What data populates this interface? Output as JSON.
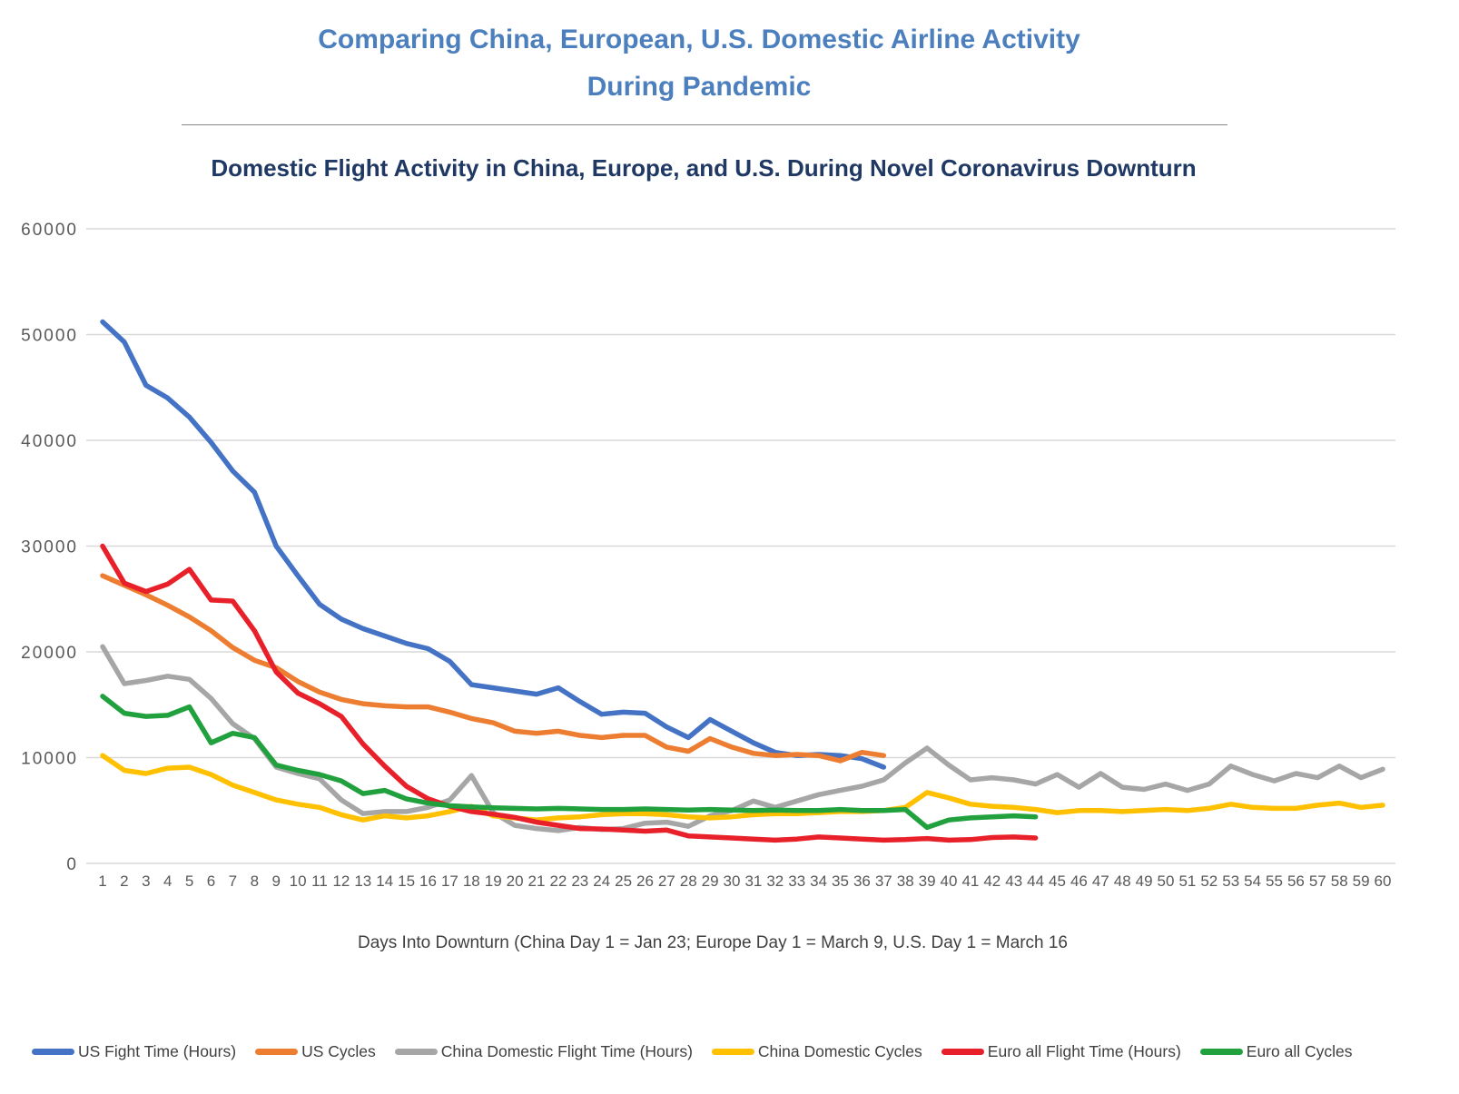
{
  "title": {
    "line1": "Comparing China, European, U.S. Domestic Airline Activity",
    "line2": "During Pandemic"
  },
  "subtitle": "Domestic Flight Activity in China, Europe, and U.S. During Novel Coronavirus Downturn",
  "x_axis_title": "Days Into Downturn (China Day 1 = Jan 23; Europe Day 1 = March 9, U.S. Day 1 = March 16",
  "colors": {
    "title_blue": "#4C7FBE",
    "subtitle_navy": "#1F3864",
    "gridline": "#D9D9D9",
    "tick_text": "#595959"
  },
  "chart_data": {
    "type": "line",
    "title": "Domestic Flight Activity in China, Europe, and U.S. During Novel Coronavirus Downturn",
    "xlabel": "Days Into Downturn (China Day 1 = Jan 23; Europe Day 1 = March 9, U.S. Day 1 = March 16",
    "ylabel": "",
    "ylim": [
      0,
      60000
    ],
    "grid": true,
    "legend_position": "bottom",
    "y_ticks": [
      0,
      10000,
      20000,
      30000,
      40000,
      50000,
      60000
    ],
    "x": [
      1,
      2,
      3,
      4,
      5,
      6,
      7,
      8,
      9,
      10,
      11,
      12,
      13,
      14,
      15,
      16,
      17,
      18,
      19,
      20,
      21,
      22,
      23,
      24,
      25,
      26,
      27,
      28,
      29,
      30,
      31,
      32,
      33,
      34,
      35,
      36,
      37,
      38,
      39,
      40,
      41,
      42,
      43,
      44,
      45,
      46,
      47,
      48,
      49,
      50,
      51,
      52,
      53,
      54,
      55,
      56,
      57,
      58,
      59,
      60
    ],
    "series": [
      {
        "name": "US Fight Time (Hours)",
        "color": "#4472C4",
        "values": [
          51200,
          49300,
          45200,
          44000,
          42200,
          39800,
          37100,
          35100,
          30000,
          27200,
          24500,
          23100,
          22200,
          21500,
          20800,
          20300,
          19100,
          16900,
          16600,
          16300,
          16000,
          16600,
          15300,
          14100,
          14300,
          14200,
          12900,
          11900,
          13600,
          12500,
          11400,
          10500,
          10200,
          10300,
          10200,
          9900,
          9100
        ]
      },
      {
        "name": "US Cycles",
        "color": "#ED7D31",
        "values": [
          27200,
          26300,
          25400,
          24400,
          23300,
          22000,
          20400,
          19200,
          18500,
          17200,
          16200,
          15500,
          15100,
          14900,
          14800,
          14800,
          14300,
          13700,
          13300,
          12500,
          12300,
          12500,
          12100,
          11900,
          12100,
          12100,
          11000,
          10600,
          11800,
          11000,
          10400,
          10200,
          10300,
          10200,
          9700,
          10500,
          10200
        ]
      },
      {
        "name": "China Domestic Flight Time (Hours)",
        "color": "#A6A6A6",
        "values": [
          20500,
          17000,
          17300,
          17700,
          17400,
          15600,
          13200,
          11800,
          9100,
          8500,
          8000,
          6000,
          4700,
          4900,
          4900,
          5300,
          6000,
          8300,
          4800,
          3600,
          3300,
          3100,
          3400,
          3200,
          3300,
          3800,
          3900,
          3500,
          4500,
          5000,
          5900,
          5300,
          5900,
          6500,
          6900,
          7300,
          7900,
          9500,
          10900,
          9300,
          7900,
          8100,
          7900,
          7500,
          8400,
          7200,
          8500,
          7200,
          7000,
          7500,
          6900,
          7500,
          9200,
          8400,
          7800,
          8500,
          8100,
          9200,
          8100,
          8900
        ]
      },
      {
        "name": "China Domestic Cycles",
        "color": "#FFC000",
        "values": [
          10200,
          8800,
          8500,
          9000,
          9100,
          8400,
          7400,
          6700,
          6000,
          5600,
          5300,
          4600,
          4100,
          4500,
          4300,
          4500,
          4900,
          5400,
          4500,
          4300,
          4100,
          4300,
          4400,
          4600,
          4700,
          4700,
          4600,
          4400,
          4300,
          4400,
          4600,
          4700,
          4700,
          4800,
          4900,
          4900,
          5000,
          5300,
          6700,
          6200,
          5600,
          5400,
          5300,
          5100,
          4800,
          5000,
          5000,
          4900,
          5000,
          5100,
          5000,
          5200,
          5600,
          5300,
          5200,
          5200,
          5500,
          5700,
          5300,
          5500
        ]
      },
      {
        "name": "Euro all Flight Time (Hours)",
        "color": "#E8202A",
        "values": [
          30000,
          26500,
          25700,
          26400,
          27800,
          24900,
          24800,
          22000,
          18100,
          16100,
          15100,
          13900,
          11300,
          9200,
          7300,
          6100,
          5400,
          4900,
          4650,
          4350,
          3900,
          3600,
          3300,
          3250,
          3150,
          3050,
          3150,
          2600,
          2500,
          2400,
          2300,
          2200,
          2300,
          2500,
          2400,
          2300,
          2200,
          2250,
          2350,
          2200,
          2250,
          2450,
          2500,
          2400
        ]
      },
      {
        "name": "Euro all Cycles",
        "color": "#21A13E",
        "values": [
          15800,
          14200,
          13900,
          14000,
          14800,
          11400,
          12300,
          11900,
          9300,
          8800,
          8400,
          7800,
          6600,
          6900,
          6100,
          5700,
          5450,
          5350,
          5250,
          5200,
          5150,
          5200,
          5150,
          5100,
          5100,
          5150,
          5100,
          5050,
          5100,
          5050,
          5000,
          5050,
          5000,
          5000,
          5100,
          5000,
          5000,
          5100,
          3400,
          4100,
          4300,
          4400,
          4500,
          4400
        ]
      }
    ]
  }
}
